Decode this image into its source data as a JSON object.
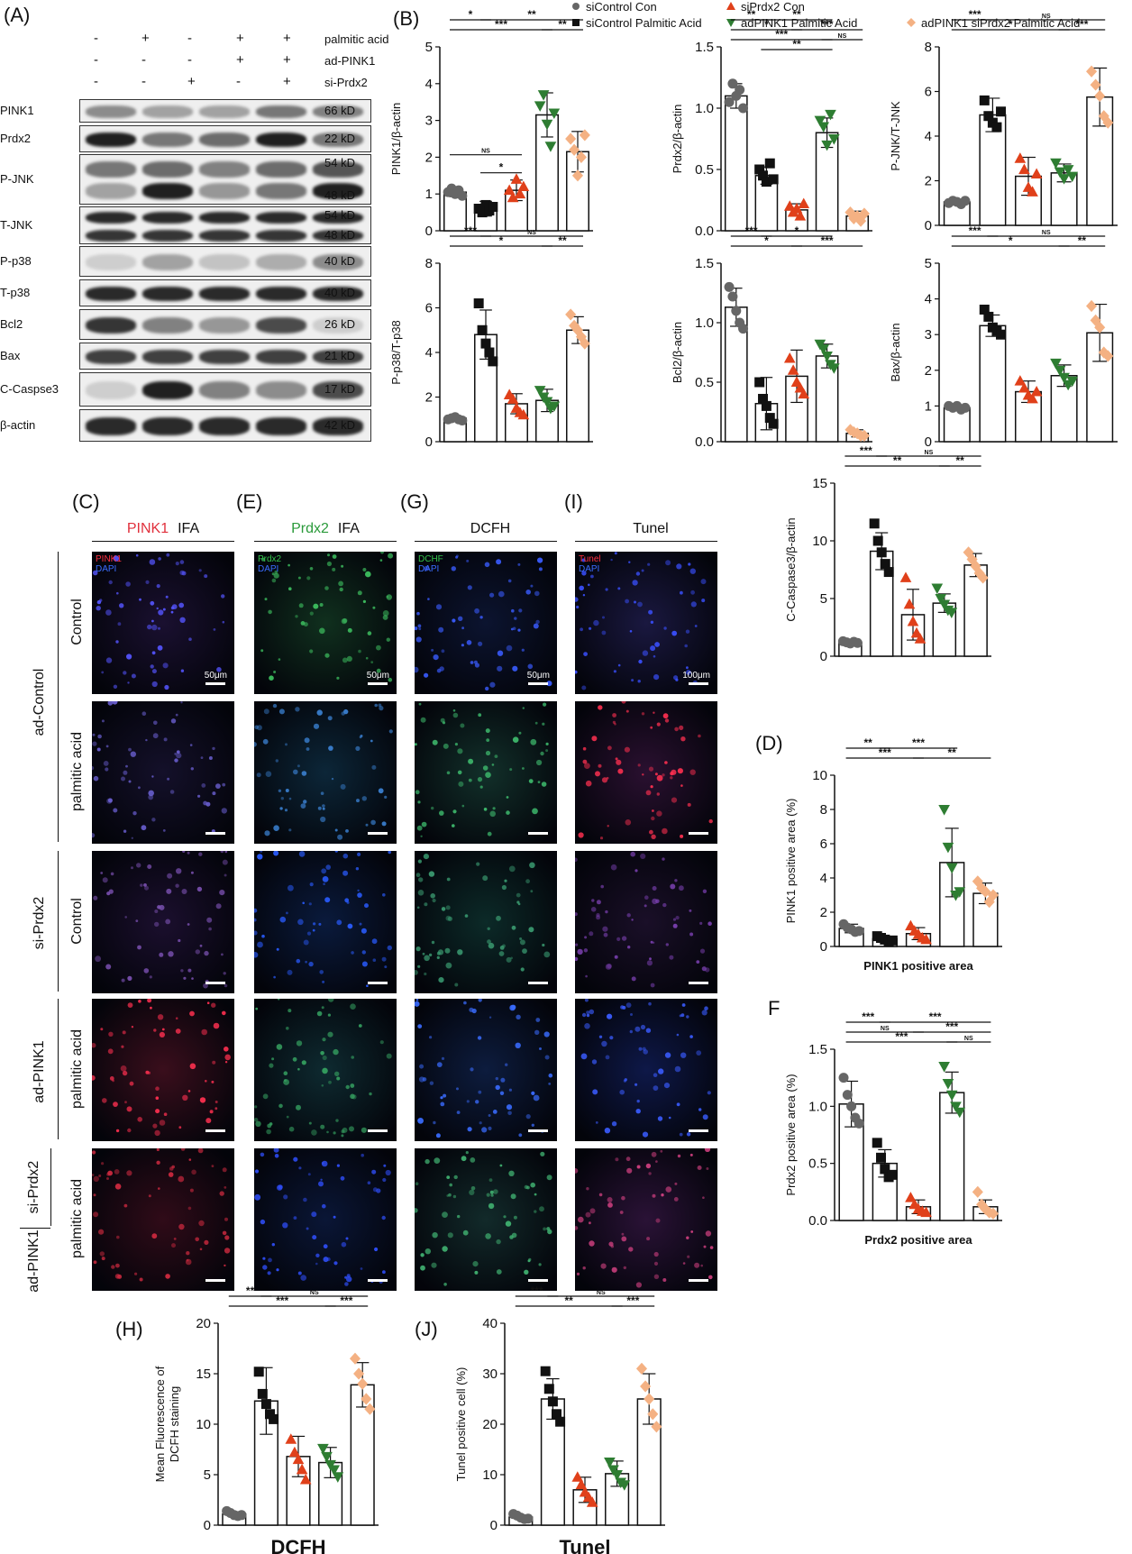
{
  "panels": {
    "A": "(A)",
    "B": "(B)",
    "C": "(C)",
    "E": "(E)",
    "G": "(G)",
    "I": "(I)",
    "D": "(D)",
    "F": "F",
    "H": "(H)",
    "J": "(J)"
  },
  "blot": {
    "conditions": [
      {
        "label": "palmitic acid",
        "signs": [
          "-",
          "+",
          "-",
          "+",
          "+"
        ]
      },
      {
        "label": "ad-PINK1",
        "signs": [
          "-",
          "-",
          "-",
          "+",
          "+"
        ]
      },
      {
        "label": "si-Prdx2",
        "signs": [
          "-",
          "-",
          "+",
          "-",
          "+"
        ]
      }
    ],
    "rows": [
      {
        "name": "PINK1",
        "kd": "66 kD"
      },
      {
        "name": "Prdx2",
        "kd": "22 kD"
      },
      {
        "name": "P-JNK",
        "kd": "54 kD",
        "kd2": "48 kD"
      },
      {
        "name": "T-JNK",
        "kd": "54 kD",
        "kd2": "48 kD"
      },
      {
        "name": "P-p38",
        "kd": "40 kD"
      },
      {
        "name": "T-p38",
        "kd": "40 kD"
      },
      {
        "name": "Bcl2",
        "kd": "26 kD"
      },
      {
        "name": "Bax",
        "kd": "21 kD"
      },
      {
        "name": "C-Caspse3",
        "kd": "17 kD"
      },
      {
        "name": "β-actin",
        "kd": "42 kD"
      }
    ]
  },
  "legend": [
    {
      "label": "siControl Con",
      "color": "#666666",
      "shape": "circle"
    },
    {
      "label": "siPrdx2 Con",
      "color": "#e0401a",
      "shape": "triangle-up"
    },
    {
      "label": "siControl Palmitic Acid",
      "color": "#111111",
      "shape": "square"
    },
    {
      "label": "adPINK1 Palmitic Acid",
      "color": "#2e7d32",
      "shape": "triangle-down"
    },
    {
      "label": "adPINK1 siPrdx2 Palmitic Acid",
      "color": "#f4b183",
      "shape": "diamond"
    }
  ],
  "micro": {
    "columns": [
      {
        "a": "PINK1",
        "b": "IFA",
        "color": "#e0303c"
      },
      {
        "a": "Prdx2",
        "b": "IFA",
        "color": "#2a9a3a"
      },
      {
        "a": "",
        "b": "DCFH",
        "color": "#111111"
      },
      {
        "a": "",
        "b": "Tunel",
        "color": "#111111"
      }
    ],
    "channel_labels": [
      {
        "top": "PINK1",
        "bottom": "DAPI",
        "topColor": "#ff3040"
      },
      {
        "top": "Prdx2",
        "bottom": "DAPI",
        "topColor": "#34c24a"
      },
      {
        "top": "DCHF",
        "bottom": "DAPI",
        "topColor": "#34c24a"
      },
      {
        "top": "Tunel",
        "bottom": "DAPI",
        "topColor": "#ff3040"
      }
    ],
    "scale_labels": [
      "50μm",
      "50μm",
      "50μm",
      "100μm"
    ],
    "rows": [
      "Control",
      "palmitic acid",
      "Control",
      "palmitic acid",
      "palmitic acid"
    ],
    "groups": [
      "ad-Control",
      "si-Prdx2",
      "ad-PINK1",
      "si-Prdx2",
      "ad-PINK1"
    ]
  },
  "chart_data": [
    {
      "id": "pink1",
      "type": "bar",
      "ylabel": "PINK1/β-actin",
      "xlabel": "",
      "ylim": [
        0,
        5
      ],
      "yticks": [
        "0",
        "1",
        "2",
        "3",
        "4",
        "5"
      ],
      "values": [
        1.05,
        0.6,
        1.1,
        3.15,
        2.15
      ],
      "err": [
        0.12,
        0.2,
        0.28,
        0.6,
        0.55
      ],
      "points": [
        [
          1.05,
          1.15,
          1.0,
          1.1,
          0.95
        ],
        [
          0.6,
          0.5,
          0.7,
          0.55,
          0.65
        ],
        [
          1.1,
          0.9,
          1.4,
          1.0,
          1.2
        ],
        [
          3.4,
          3.7,
          2.9,
          2.3,
          3.2
        ],
        [
          2.5,
          2.2,
          1.5,
          2.0,
          2.6
        ]
      ],
      "sig": [
        {
          "from": 0,
          "to": 1,
          "level": 1,
          "label": "*"
        },
        {
          "from": 1,
          "to": 4,
          "level": 1,
          "label": "**"
        },
        {
          "from": 0,
          "to": 3,
          "level": 2,
          "label": "***"
        },
        {
          "from": 3,
          "to": 4,
          "level": 2,
          "label": "**"
        },
        {
          "from": 0,
          "to": 2,
          "level": 5,
          "label": "NS"
        },
        {
          "from": 1,
          "to": 2,
          "level": 6,
          "label": "*"
        }
      ]
    },
    {
      "id": "prdx2",
      "type": "bar",
      "ylabel": "Prdx2/β-actin",
      "xlabel": "",
      "ylim": [
        0,
        1.5
      ],
      "yticks": [
        "0.0",
        "0.5",
        "1.0",
        "1.5"
      ],
      "values": [
        1.1,
        0.45,
        0.17,
        0.8,
        0.12
      ],
      "err": [
        0.1,
        0.07,
        0.05,
        0.12,
        0.04
      ],
      "points": [
        [
          1.05,
          1.2,
          1.1,
          1.15,
          1.0
        ],
        [
          0.5,
          0.45,
          0.4,
          0.55,
          0.42
        ],
        [
          0.2,
          0.15,
          0.18,
          0.12,
          0.22
        ],
        [
          0.9,
          0.85,
          0.7,
          0.95,
          0.75
        ],
        [
          0.15,
          0.1,
          0.12,
          0.08,
          0.14
        ]
      ],
      "sig": [
        {
          "from": 0,
          "to": 1,
          "level": 1,
          "label": "**"
        },
        {
          "from": 1,
          "to": 3,
          "level": 1,
          "label": "**"
        },
        {
          "from": 0,
          "to": 2,
          "level": 2,
          "label": "*"
        },
        {
          "from": 2,
          "to": 4,
          "level": 2,
          "label": "***"
        },
        {
          "from": 0,
          "to": 3,
          "level": 3,
          "label": "***"
        },
        {
          "from": 3,
          "to": 4,
          "level": 3,
          "label": "NS"
        },
        {
          "from": 1,
          "to": 3,
          "level": 4,
          "label": "**"
        }
      ]
    },
    {
      "id": "pjnk",
      "type": "bar",
      "ylabel": "P-JNK/T-JNK",
      "xlabel": "",
      "ylim": [
        0,
        8
      ],
      "yticks": [
        "0",
        "2",
        "4",
        "6",
        "8"
      ],
      "values": [
        1.05,
        4.95,
        2.2,
        2.35,
        5.75
      ],
      "err": [
        0.1,
        0.75,
        0.85,
        0.4,
        1.3
      ],
      "points": [
        [
          1.0,
          1.1,
          1.05,
          0.95,
          1.1
        ],
        [
          5.6,
          4.9,
          4.6,
          4.4,
          5.1
        ],
        [
          3.0,
          2.5,
          1.7,
          1.5,
          2.3
        ],
        [
          2.8,
          2.4,
          2.1,
          2.5,
          2.2
        ],
        [
          6.9,
          6.3,
          5.8,
          4.9,
          4.6
        ]
      ],
      "sig": [
        {
          "from": 0,
          "to": 1,
          "level": 1,
          "label": "***"
        },
        {
          "from": 1,
          "to": 4,
          "level": 1,
          "label": "NS"
        },
        {
          "from": 0,
          "to": 3,
          "level": 2,
          "label": "*"
        },
        {
          "from": 3,
          "to": 4,
          "level": 2,
          "label": "***"
        }
      ]
    },
    {
      "id": "pp38",
      "type": "bar",
      "ylabel": "P-p38/T-p38",
      "xlabel": "",
      "ylim": [
        0,
        8
      ],
      "yticks": [
        "0",
        "2",
        "4",
        "6",
        "8"
      ],
      "values": [
        1.05,
        4.8,
        1.7,
        1.85,
        5.0
      ],
      "err": [
        0.08,
        1.1,
        0.45,
        0.5,
        0.6
      ],
      "points": [
        [
          1.0,
          1.05,
          1.1,
          1.0,
          0.95
        ],
        [
          6.2,
          5.0,
          4.4,
          4.0,
          3.6
        ],
        [
          2.1,
          1.9,
          1.5,
          1.3,
          1.2
        ],
        [
          2.3,
          2.0,
          1.8,
          1.5,
          1.6
        ],
        [
          5.7,
          5.2,
          5.0,
          4.7,
          4.4
        ]
      ],
      "sig": [
        {
          "from": 0,
          "to": 1,
          "level": 1,
          "label": "***"
        },
        {
          "from": 1,
          "to": 4,
          "level": 1,
          "label": "NS"
        },
        {
          "from": 0,
          "to": 3,
          "level": 2,
          "label": "*"
        },
        {
          "from": 3,
          "to": 4,
          "level": 2,
          "label": "**"
        }
      ]
    },
    {
      "id": "bcl2",
      "type": "bar",
      "ylabel": "Bcl2/β-actin",
      "xlabel": "",
      "ylim": [
        0,
        1.5
      ],
      "yticks": [
        "0.0",
        "0.5",
        "1.0",
        "1.5"
      ],
      "values": [
        1.13,
        0.32,
        0.55,
        0.72,
        0.07
      ],
      "err": [
        0.16,
        0.22,
        0.22,
        0.1,
        0.03
      ],
      "points": [
        [
          1.3,
          1.22,
          1.1,
          1.0,
          0.95
        ],
        [
          0.5,
          0.36,
          0.3,
          0.2,
          0.15
        ],
        [
          0.7,
          0.6,
          0.5,
          0.45,
          0.4
        ],
        [
          0.82,
          0.78,
          0.72,
          0.65,
          0.62
        ],
        [
          0.1,
          0.08,
          0.07,
          0.05,
          0.05
        ]
      ],
      "sig": [
        {
          "from": 0,
          "to": 1,
          "level": 1,
          "label": "***"
        },
        {
          "from": 1,
          "to": 3,
          "level": 1,
          "label": "*"
        },
        {
          "from": 0,
          "to": 2,
          "level": 2,
          "label": "*"
        },
        {
          "from": 2,
          "to": 4,
          "level": 2,
          "label": "***"
        }
      ]
    },
    {
      "id": "bax",
      "type": "bar",
      "ylabel": "Bax/β-actin",
      "xlabel": "",
      "ylim": [
        0,
        5
      ],
      "yticks": [
        "0",
        "1",
        "2",
        "3",
        "4",
        "5"
      ],
      "values": [
        0.95,
        3.25,
        1.4,
        1.85,
        3.05
      ],
      "err": [
        0.08,
        0.3,
        0.3,
        0.3,
        0.8
      ],
      "points": [
        [
          1.0,
          0.95,
          1.0,
          0.9,
          0.95
        ],
        [
          3.7,
          3.5,
          3.2,
          3.1,
          3.0
        ],
        [
          1.7,
          1.5,
          1.3,
          1.2,
          1.4
        ],
        [
          2.2,
          2.0,
          1.8,
          1.6,
          1.7
        ],
        [
          3.8,
          3.4,
          3.2,
          2.5,
          2.4
        ]
      ],
      "sig": [
        {
          "from": 0,
          "to": 1,
          "level": 1,
          "label": "***"
        },
        {
          "from": 1,
          "to": 4,
          "level": 1,
          "label": "NS"
        },
        {
          "from": 0,
          "to": 3,
          "level": 2,
          "label": "*"
        },
        {
          "from": 3,
          "to": 4,
          "level": 2,
          "label": "**"
        }
      ]
    },
    {
      "id": "ccasp3",
      "type": "bar",
      "ylabel": "C-Caspase3/β-actin",
      "xlabel": "",
      "ylim": [
        0,
        15
      ],
      "yticks": [
        "0",
        "5",
        "10",
        "15"
      ],
      "values": [
        1.2,
        9.1,
        3.6,
        4.6,
        7.9
      ],
      "err": [
        0.1,
        1.6,
        2.2,
        0.8,
        1.0
      ],
      "points": [
        [
          1.3,
          1.2,
          1.1,
          1.25,
          1.15
        ],
        [
          11.5,
          10.0,
          9.0,
          8.0,
          7.3
        ],
        [
          6.8,
          4.5,
          3.0,
          2.0,
          1.5
        ],
        [
          5.9,
          5.0,
          4.5,
          4.0,
          3.8
        ],
        [
          9.0,
          8.4,
          7.8,
          7.2,
          6.8
        ]
      ],
      "sig": [
        {
          "from": 0,
          "to": 1,
          "level": 1,
          "label": "***"
        },
        {
          "from": 1,
          "to": 4,
          "level": 1,
          "label": "NS"
        },
        {
          "from": 0,
          "to": 3,
          "level": 2,
          "label": "**"
        },
        {
          "from": 3,
          "to": 4,
          "level": 2,
          "label": "**"
        }
      ]
    },
    {
      "id": "pink1area",
      "type": "bar",
      "ylabel": "PINK1 positive area (%)",
      "xlabel": "PINK1 positive area",
      "ylim": [
        0,
        10
      ],
      "yticks": [
        "0",
        "2",
        "4",
        "6",
        "8",
        "10"
      ],
      "values": [
        1.05,
        0.45,
        0.75,
        4.9,
        3.1
      ],
      "err": [
        0.25,
        0.15,
        0.35,
        2.0,
        0.6
      ],
      "points": [
        [
          1.3,
          1.1,
          1.0,
          0.85,
          0.9
        ],
        [
          0.6,
          0.5,
          0.4,
          0.3,
          0.35
        ],
        [
          1.2,
          0.9,
          0.7,
          0.5,
          0.4
        ],
        [
          8.0,
          5.8,
          4.6,
          3.0,
          3.2
        ],
        [
          3.8,
          3.4,
          3.2,
          2.6,
          3.0
        ]
      ],
      "sig": [
        {
          "from": 0,
          "to": 1,
          "level": 1,
          "label": "**"
        },
        {
          "from": 1,
          "to": 3,
          "level": 1,
          "label": "***"
        },
        {
          "from": 0,
          "to": 2,
          "level": 2,
          "label": "***"
        },
        {
          "from": 2,
          "to": 4,
          "level": 2,
          "label": "**"
        }
      ]
    },
    {
      "id": "prdx2area",
      "type": "bar",
      "ylabel": "Prdx2 positive area (%)",
      "xlabel": "Prdx2 positive area",
      "ylim": [
        0,
        1.5
      ],
      "yticks": [
        "0.0",
        "0.5",
        "1.0",
        "1.5"
      ],
      "values": [
        1.02,
        0.5,
        0.12,
        1.12,
        0.12
      ],
      "err": [
        0.2,
        0.12,
        0.06,
        0.18,
        0.06
      ],
      "points": [
        [
          1.25,
          1.1,
          1.0,
          0.9,
          0.85
        ],
        [
          0.68,
          0.55,
          0.45,
          0.38,
          0.4
        ],
        [
          0.2,
          0.14,
          0.1,
          0.08,
          0.07
        ],
        [
          1.35,
          1.2,
          1.1,
          1.0,
          0.95
        ],
        [
          0.25,
          0.14,
          0.1,
          0.07,
          0.06
        ]
      ],
      "sig": [
        {
          "from": 0,
          "to": 1,
          "level": 1,
          "label": "***"
        },
        {
          "from": 1,
          "to": 4,
          "level": 1,
          "label": "***"
        },
        {
          "from": 0,
          "to": 2,
          "level": 2,
          "label": "NS"
        },
        {
          "from": 2,
          "to": 4,
          "level": 2,
          "label": "***"
        },
        {
          "from": 0,
          "to": 3,
          "level": 3,
          "label": "***"
        },
        {
          "from": 3,
          "to": 4,
          "level": 3,
          "label": "NS"
        }
      ]
    },
    {
      "id": "dcfh",
      "type": "bar",
      "ylabel": "Mean Fluorescence of DCFH staining",
      "xlabel": "DCFH",
      "ylim": [
        0,
        20
      ],
      "yticks": [
        "0",
        "5",
        "10",
        "15",
        "20"
      ],
      "values": [
        1.1,
        12.3,
        6.8,
        6.2,
        13.9
      ],
      "err": [
        0.2,
        3.3,
        2.0,
        1.5,
        2.2
      ],
      "points": [
        [
          1.4,
          1.2,
          1.0,
          0.9,
          1.0
        ],
        [
          15.2,
          13.0,
          12.0,
          11.0,
          10.5
        ],
        [
          8.5,
          7.2,
          6.5,
          5.5,
          4.5
        ],
        [
          7.6,
          6.8,
          6.0,
          5.5,
          4.8
        ],
        [
          16.5,
          15.0,
          14.0,
          12.5,
          11.5
        ]
      ],
      "sig": [
        {
          "from": 0,
          "to": 1,
          "level": 1,
          "label": "**"
        },
        {
          "from": 1,
          "to": 4,
          "level": 1,
          "label": "NS"
        },
        {
          "from": 0,
          "to": 3,
          "level": 2,
          "label": "***"
        },
        {
          "from": 3,
          "to": 4,
          "level": 2,
          "label": "***"
        }
      ]
    },
    {
      "id": "tunel",
      "type": "bar",
      "ylabel": "Tunel positive cell (%)",
      "xlabel": "Tunel",
      "ylim": [
        0,
        40
      ],
      "yticks": [
        "0",
        "10",
        "20",
        "30",
        "40"
      ],
      "values": [
        1.6,
        25.0,
        7.0,
        10.2,
        25.0
      ],
      "err": [
        0.4,
        4.0,
        2.5,
        2.5,
        5.0
      ],
      "points": [
        [
          2.2,
          1.9,
          1.5,
          1.2,
          1.3
        ],
        [
          30.5,
          27.0,
          24.5,
          22.0,
          20.5
        ],
        [
          9.5,
          8.0,
          6.5,
          5.5,
          4.5
        ],
        [
          12.5,
          11.0,
          10.0,
          8.5,
          8.0
        ],
        [
          31.0,
          27.5,
          25.0,
          22.0,
          19.5
        ]
      ],
      "sig": [
        {
          "from": 0,
          "to": 1,
          "level": 1,
          "label": "***"
        },
        {
          "from": 1,
          "to": 4,
          "level": 1,
          "label": "NS"
        },
        {
          "from": 0,
          "to": 3,
          "level": 2,
          "label": "**"
        },
        {
          "from": 3,
          "to": 4,
          "level": 2,
          "label": "***"
        }
      ]
    }
  ]
}
